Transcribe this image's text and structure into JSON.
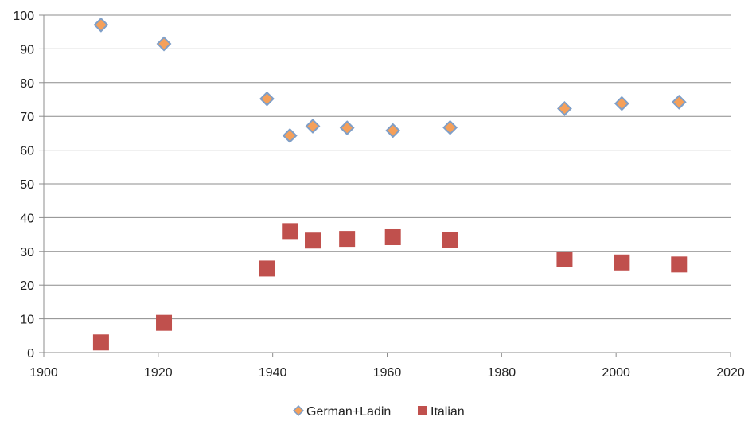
{
  "chart_data": {
    "type": "scatter",
    "title": "",
    "xlabel": "",
    "ylabel": "",
    "xlim": [
      1900,
      2020
    ],
    "ylim": [
      0,
      100
    ],
    "x_ticks": [
      1900,
      1920,
      1940,
      1960,
      1980,
      2000,
      2020
    ],
    "y_ticks": [
      0,
      10,
      20,
      30,
      40,
      50,
      60,
      70,
      80,
      90,
      100
    ],
    "grid": {
      "horizontal": true,
      "vertical": false
    },
    "legend": {
      "position": "bottom"
    },
    "series": [
      {
        "name": "German+Ladin",
        "marker": "diamond",
        "color": "#f5a05a",
        "edge_color": "#7f9fc8",
        "points": [
          [
            1910,
            97.1
          ],
          [
            1921,
            91.5
          ],
          [
            1939,
            75.2
          ],
          [
            1943,
            64.3
          ],
          [
            1947,
            67.1
          ],
          [
            1953,
            66.6
          ],
          [
            1961,
            65.8
          ],
          [
            1971,
            66.7
          ],
          [
            1991,
            72.3
          ],
          [
            2001,
            73.8
          ],
          [
            2011,
            74.2
          ]
        ]
      },
      {
        "name": "Italian",
        "marker": "square",
        "color": "#c0504d",
        "edge_color": "#c0504d",
        "points": [
          [
            1910,
            3.0
          ],
          [
            1921,
            8.8
          ],
          [
            1939,
            24.9
          ],
          [
            1943,
            36.0
          ],
          [
            1947,
            33.2
          ],
          [
            1953,
            33.7
          ],
          [
            1961,
            34.2
          ],
          [
            1971,
            33.3
          ],
          [
            1991,
            27.6
          ],
          [
            2001,
            26.7
          ],
          [
            2011,
            26.1
          ]
        ]
      }
    ]
  }
}
